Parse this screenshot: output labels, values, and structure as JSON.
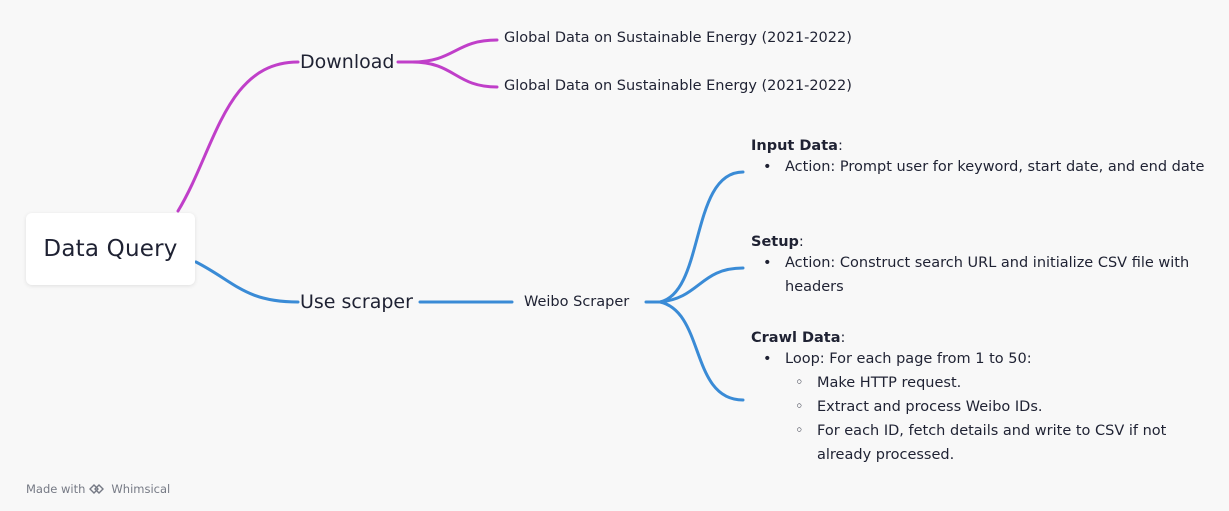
{
  "root": {
    "label": "Data Query"
  },
  "branches": {
    "download": {
      "label": "Download",
      "children": [
        "Global Data on Sustainable Energy (2021-2022)",
        "Global Data on Sustainable Energy (2021-2022)"
      ]
    },
    "scraper": {
      "label": "Use scraper",
      "child": "Weibo Scraper",
      "notes": [
        {
          "title": "Input Data",
          "colon": ":",
          "bullets": [
            "Action: Prompt user for keyword, start date, and end date"
          ]
        },
        {
          "title": "Setup",
          "colon": ":",
          "bullets": [
            "Action: Construct search URL and initialize CSV file with headers"
          ]
        },
        {
          "title": "Crawl Data",
          "colon": ":",
          "bullets": [
            "Loop: For each page from 1 to 50:"
          ],
          "sub_bullets": [
            "Make HTTP request.",
            "Extract and process Weibo IDs.",
            "For each ID, fetch details and write to CSV if not already processed."
          ]
        }
      ]
    }
  },
  "bullet_symbols": {
    "level1": "•",
    "level2": "◦"
  },
  "footer": {
    "made_with": "Made with",
    "brand": "Whimsical"
  },
  "colors": {
    "download_branch": "#c03fc9",
    "scraper_branch": "#3a8bd6",
    "background": "#f8f8f8"
  }
}
